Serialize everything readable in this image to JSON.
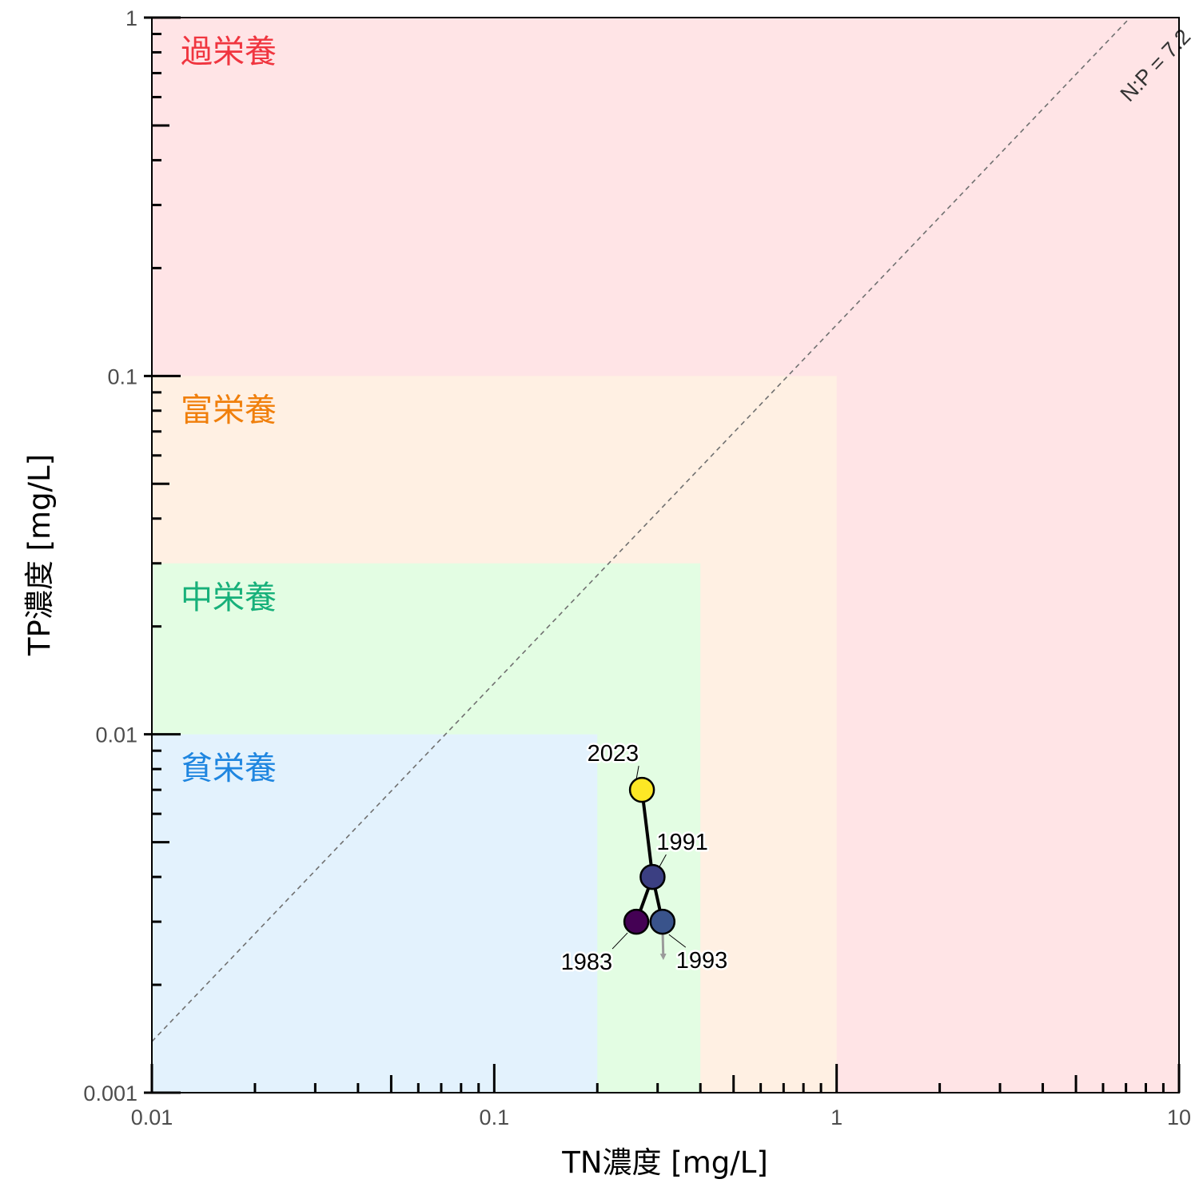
{
  "chart_data": {
    "type": "scatter",
    "xlabel": "TN濃度 [mg/L]",
    "ylabel": "TP濃度 [mg/L]",
    "x_scale": "log",
    "y_scale": "log",
    "xlim": [
      0.01,
      10
    ],
    "ylim": [
      0.001,
      1
    ],
    "x_ticks": [
      {
        "value": 0.01,
        "label": "0.01"
      },
      {
        "value": 0.1,
        "label": "0.1"
      },
      {
        "value": 1,
        "label": "1"
      },
      {
        "value": 10,
        "label": "10"
      }
    ],
    "y_ticks": [
      {
        "value": 0.001,
        "label": "0.001"
      },
      {
        "value": 0.01,
        "label": "0.01"
      },
      {
        "value": 0.1,
        "label": "0.1"
      },
      {
        "value": 1,
        "label": "1"
      }
    ],
    "grid": false,
    "zones": [
      {
        "label": "過栄養",
        "tn_max": 10,
        "tp_max": 1,
        "fill": "#ffe4e6",
        "text_color": "#f0353f"
      },
      {
        "label": "富栄養",
        "tn_max": 1,
        "tp_max": 0.1,
        "fill": "#fff0e3",
        "text_color": "#f07f0c"
      },
      {
        "label": "中栄養",
        "tn_max": 0.4,
        "tp_max": 0.03,
        "fill": "#e3fde3",
        "text_color": "#17b07a"
      },
      {
        "label": "貧栄養",
        "tn_max": 0.2,
        "tp_max": 0.01,
        "fill": "#e3f2fd",
        "text_color": "#1f86e0"
      }
    ],
    "ratio_line": {
      "label": "N:P = 7.2",
      "ratio": 7.2
    },
    "points": [
      {
        "year": "1983",
        "x": 0.26,
        "y": 0.003,
        "color": "#440154"
      },
      {
        "year": "1991",
        "x": 0.29,
        "y": 0.004,
        "color": "#3b3f82"
      },
      {
        "year": "1993",
        "x": 0.31,
        "y": 0.003,
        "color": "#39538b"
      },
      {
        "year": "2023",
        "x": 0.27,
        "y": 0.007,
        "color": "#fde725"
      }
    ],
    "path_order": [
      "1983",
      "1991",
      "1993"
    ],
    "path_to_latest": [
      "1991",
      "2023"
    ]
  }
}
